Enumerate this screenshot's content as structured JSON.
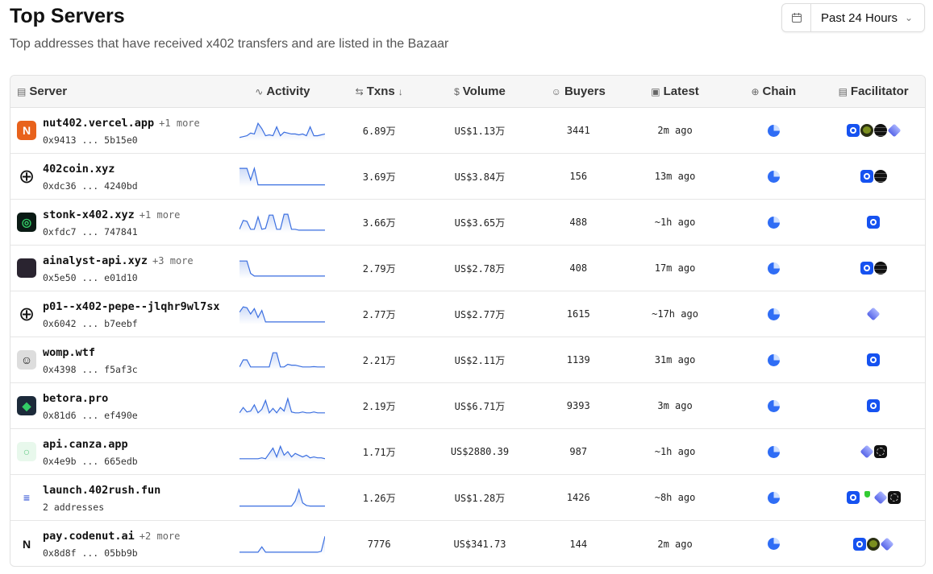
{
  "header": {
    "title": "Top Servers",
    "subtitle": "Top addresses that have received x402 transfers and are listed in the Bazaar",
    "range": "Past 24 Hours"
  },
  "columns": {
    "server": "Server",
    "activity": "Activity",
    "txns": "Txns",
    "volume": "Volume",
    "buyers": "Buyers",
    "latest": "Latest",
    "chain": "Chain",
    "facilitator": "Facilitator"
  },
  "sort": {
    "column": "txns",
    "direction": "desc"
  },
  "accent": "#3b6fe0",
  "rows": [
    {
      "name": "nut402.vercel.app",
      "more": "+1 more",
      "addr": "0x9413 ... 5b15e0",
      "logo": "nut-logo",
      "logo_color": "#e8621c",
      "txns": "6.89万",
      "volume": "US$1.13万",
      "buyers": "3441",
      "latest": "2m ago",
      "facilitators": [
        "coinbase",
        "green",
        "black",
        "layers"
      ],
      "activity": [
        0.1,
        0.15,
        0.2,
        0.35,
        0.3,
        0.9,
        0.6,
        0.2,
        0.25,
        0.2,
        0.7,
        0.2,
        0.4,
        0.35,
        0.3,
        0.3,
        0.25,
        0.3,
        0.2,
        0.7,
        0.2,
        0.2,
        0.25,
        0.3
      ]
    },
    {
      "name": "402coin.xyz",
      "more": "",
      "addr": "0xdc36 ... 4240bd",
      "logo": "globe-icon",
      "logo_color": "#fff",
      "txns": "3.69万",
      "volume": "US$3.84万",
      "buyers": "156",
      "latest": "13m ago",
      "facilitators": [
        "coinbase",
        "black"
      ],
      "activity": [
        0.95,
        0.95,
        0.95,
        0.3,
        0.95,
        0.02,
        0.02,
        0.02,
        0.02,
        0.02,
        0.02,
        0.02,
        0.02,
        0.02,
        0.02,
        0.02,
        0.02,
        0.02,
        0.02,
        0.02,
        0.02,
        0.02,
        0.02,
        0.02
      ]
    },
    {
      "name": "stonk-x402.xyz",
      "more": "+1 more",
      "addr": "0xfdc7 ... 747841",
      "logo": "stonk-logo",
      "logo_color": "#0a1a14",
      "txns": "3.66万",
      "volume": "US$3.65万",
      "buyers": "488",
      "latest": "~1h ago",
      "facilitators": [
        "coinbase"
      ],
      "activity": [
        0.1,
        0.6,
        0.55,
        0.1,
        0.1,
        0.8,
        0.1,
        0.15,
        0.9,
        0.9,
        0.1,
        0.1,
        0.95,
        0.95,
        0.1,
        0.1,
        0.05,
        0.05,
        0.05,
        0.05,
        0.05,
        0.05,
        0.05,
        0.05
      ]
    },
    {
      "name": "ainalyst-api.xyz",
      "more": "+3 more",
      "addr": "0x5e50 ... e01d10",
      "logo": "ainalyst-logo",
      "logo_color": "#2a2430",
      "txns": "2.79万",
      "volume": "US$2.78万",
      "buyers": "408",
      "latest": "17m ago",
      "facilitators": [
        "coinbase",
        "black"
      ],
      "activity": [
        0.9,
        0.9,
        0.9,
        0.2,
        0.05,
        0.05,
        0.05,
        0.05,
        0.05,
        0.05,
        0.05,
        0.05,
        0.05,
        0.05,
        0.05,
        0.05,
        0.05,
        0.05,
        0.05,
        0.05,
        0.05,
        0.05,
        0.05,
        0.05
      ]
    },
    {
      "name": "p01--x402-pepe--jlqhr9wl7sx",
      "more": "",
      "addr": "0x6042 ... b7eebf",
      "logo": "globe-icon",
      "logo_color": "#fff",
      "txns": "2.77万",
      "volume": "US$2.77万",
      "buyers": "1615",
      "latest": "~17h ago",
      "facilitators": [
        "layers"
      ],
      "activity": [
        0.6,
        0.9,
        0.85,
        0.5,
        0.8,
        0.3,
        0.7,
        0.05,
        0.05,
        0.05,
        0.05,
        0.05,
        0.05,
        0.05,
        0.05,
        0.05,
        0.05,
        0.05,
        0.05,
        0.05,
        0.05,
        0.05,
        0.05,
        0.05
      ]
    },
    {
      "name": "womp.wtf",
      "more": "",
      "addr": "0x4398 ... f5af3c",
      "logo": "womp-logo",
      "logo_color": "#ddd",
      "txns": "2.21万",
      "volume": "US$2.11万",
      "buyers": "1139",
      "latest": "31m ago",
      "facilitators": [
        "coinbase"
      ],
      "activity": [
        0.1,
        0.5,
        0.5,
        0.1,
        0.1,
        0.1,
        0.1,
        0.1,
        0.1,
        0.9,
        0.9,
        0.1,
        0.1,
        0.25,
        0.2,
        0.2,
        0.15,
        0.1,
        0.1,
        0.1,
        0.12,
        0.1,
        0.1,
        0.1
      ]
    },
    {
      "name": "betora.pro",
      "more": "",
      "addr": "0x81d6 ... ef490e",
      "logo": "betora-logo",
      "logo_color": "#1c2a3a",
      "txns": "2.19万",
      "volume": "US$6.71万",
      "buyers": "9393",
      "latest": "3m ago",
      "facilitators": [
        "coinbase"
      ],
      "activity": [
        0.1,
        0.4,
        0.15,
        0.2,
        0.55,
        0.1,
        0.3,
        0.8,
        0.1,
        0.35,
        0.1,
        0.4,
        0.2,
        0.9,
        0.15,
        0.1,
        0.1,
        0.15,
        0.1,
        0.1,
        0.15,
        0.1,
        0.1,
        0.1
      ]
    },
    {
      "name": "api.canza.app",
      "more": "",
      "addr": "0x4e9b ... 665edb",
      "logo": "canza-logo",
      "logo_color": "#e8f8ec",
      "txns": "1.71万",
      "volume": "US$2880.39",
      "buyers": "987",
      "latest": "~1h ago",
      "facilitators": [
        "layers",
        "thirdweb"
      ],
      "activity": [
        0.1,
        0.1,
        0.1,
        0.1,
        0.1,
        0.1,
        0.15,
        0.1,
        0.4,
        0.7,
        0.2,
        0.8,
        0.3,
        0.5,
        0.2,
        0.4,
        0.3,
        0.2,
        0.3,
        0.15,
        0.2,
        0.15,
        0.15,
        0.1
      ]
    },
    {
      "name": "launch.402rush.fun",
      "more": "",
      "addr": "2 addresses",
      "logo": "402rush-logo",
      "logo_color": "#fff",
      "txns": "1.26万",
      "volume": "US$1.28万",
      "buyers": "1426",
      "latest": "~8h ago",
      "facilitators": [
        "coinbase",
        "meyens",
        "layers",
        "thirdweb"
      ],
      "activity": [
        0.02,
        0.02,
        0.02,
        0.02,
        0.02,
        0.02,
        0.02,
        0.02,
        0.02,
        0.02,
        0.02,
        0.02,
        0.02,
        0.02,
        0.02,
        0.3,
        0.95,
        0.2,
        0.05,
        0.02,
        0.02,
        0.02,
        0.02,
        0.02
      ]
    },
    {
      "name": "pay.codenut.ai",
      "more": "+2 more",
      "addr": "0x8d8f ... 05bb9b",
      "logo": "codenut-logo",
      "logo_color": "#fff",
      "txns": "7776",
      "volume": "US$341.73",
      "buyers": "144",
      "latest": "2m ago",
      "facilitators": [
        "coinbase",
        "green",
        "layers"
      ],
      "activity": [
        0.05,
        0.05,
        0.05,
        0.05,
        0.05,
        0.05,
        0.35,
        0.05,
        0.05,
        0.05,
        0.05,
        0.05,
        0.05,
        0.05,
        0.05,
        0.05,
        0.05,
        0.05,
        0.05,
        0.05,
        0.05,
        0.05,
        0.1,
        0.95
      ]
    }
  ]
}
